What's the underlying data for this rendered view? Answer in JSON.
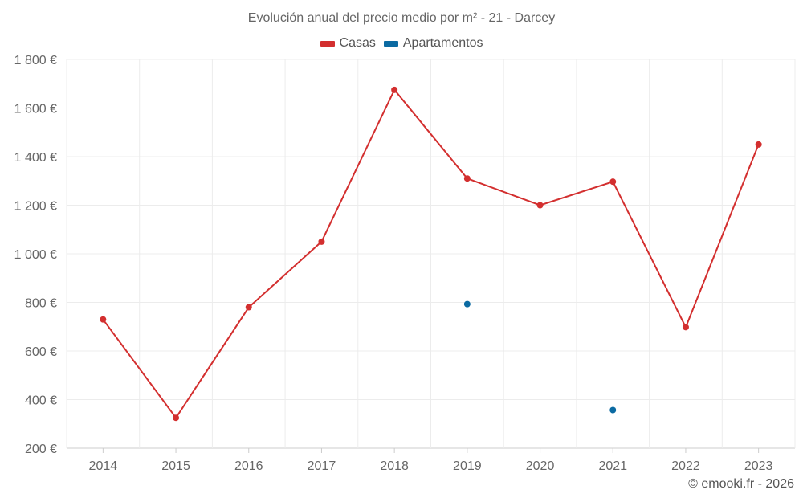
{
  "chart_data": {
    "type": "line",
    "title": "Evolución anual del precio medio por m² - 21 - Darcey",
    "categories": [
      "2014",
      "2015",
      "2016",
      "2017",
      "2018",
      "2019",
      "2020",
      "2021",
      "2022",
      "2023"
    ],
    "series": [
      {
        "name": "Casas",
        "color": "#d32f2f",
        "line": true,
        "values": [
          730,
          325,
          780,
          1050,
          1675,
          1310,
          1200,
          1297,
          698,
          1450
        ]
      },
      {
        "name": "Apartamentos",
        "color": "#0b6aa2",
        "line": false,
        "values": [
          null,
          null,
          null,
          null,
          null,
          793,
          null,
          357,
          null,
          null
        ]
      }
    ],
    "ylim": [
      200,
      1800
    ],
    "yticks": [
      200,
      400,
      600,
      800,
      1000,
      1200,
      1400,
      1600,
      1800
    ],
    "ytick_labels": [
      "200 €",
      "400 €",
      "600 €",
      "800 €",
      "1 000 €",
      "1 200 €",
      "1 400 €",
      "1 600 €",
      "1 800 €"
    ],
    "xlabel": "",
    "ylabel": "",
    "grid": true,
    "legend_position": "top-center"
  },
  "credit": "© emooki.fr - 2026"
}
